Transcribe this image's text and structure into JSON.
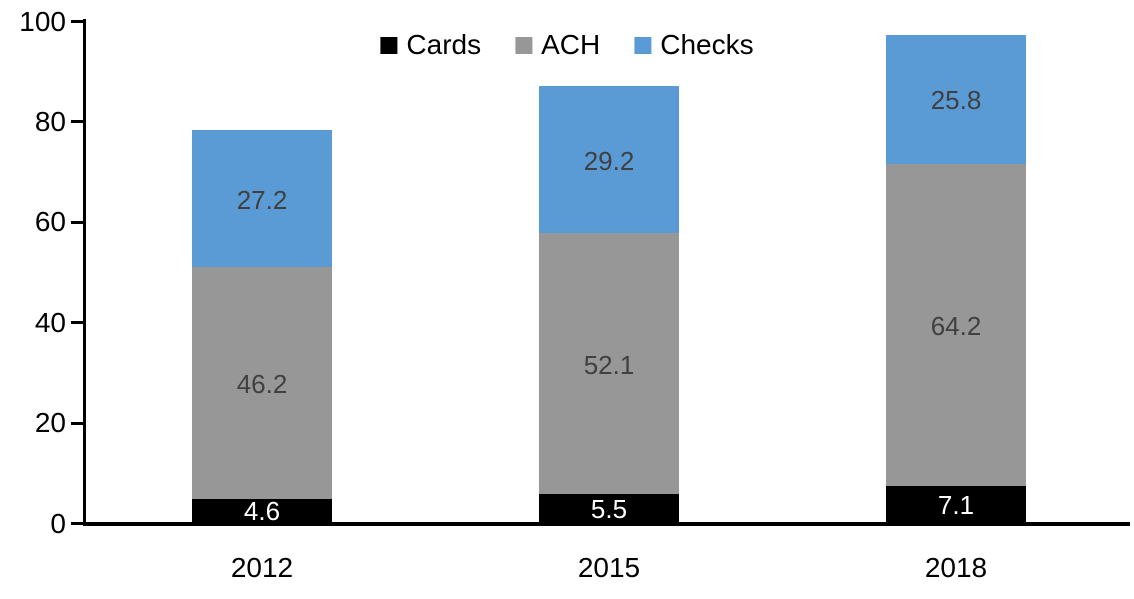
{
  "chart_data": {
    "type": "bar",
    "stacked": true,
    "title": "",
    "xlabel": "",
    "ylabel": "",
    "categories": [
      "2012",
      "2015",
      "2018"
    ],
    "series": [
      {
        "name": "Cards",
        "color": "#000000",
        "label_color": "#ffffff",
        "values": [
          4.6,
          5.5,
          7.1
        ]
      },
      {
        "name": "ACH",
        "color": "#979797",
        "label_color": "#404040",
        "values": [
          46.2,
          52.1,
          64.2
        ]
      },
      {
        "name": "Checks",
        "color": "#5b9bd5",
        "label_color": "#404040",
        "values": [
          27.2,
          29.2,
          25.8
        ]
      }
    ],
    "totals": [
      78.0,
      86.8,
      97.1
    ],
    "y_ticks": [
      0,
      20,
      40,
      60,
      80,
      100
    ],
    "ylim": [
      0,
      100
    ],
    "grid": false,
    "legend_position": "top-center",
    "axis_color": "#000000",
    "background_color": "#ffffff"
  }
}
